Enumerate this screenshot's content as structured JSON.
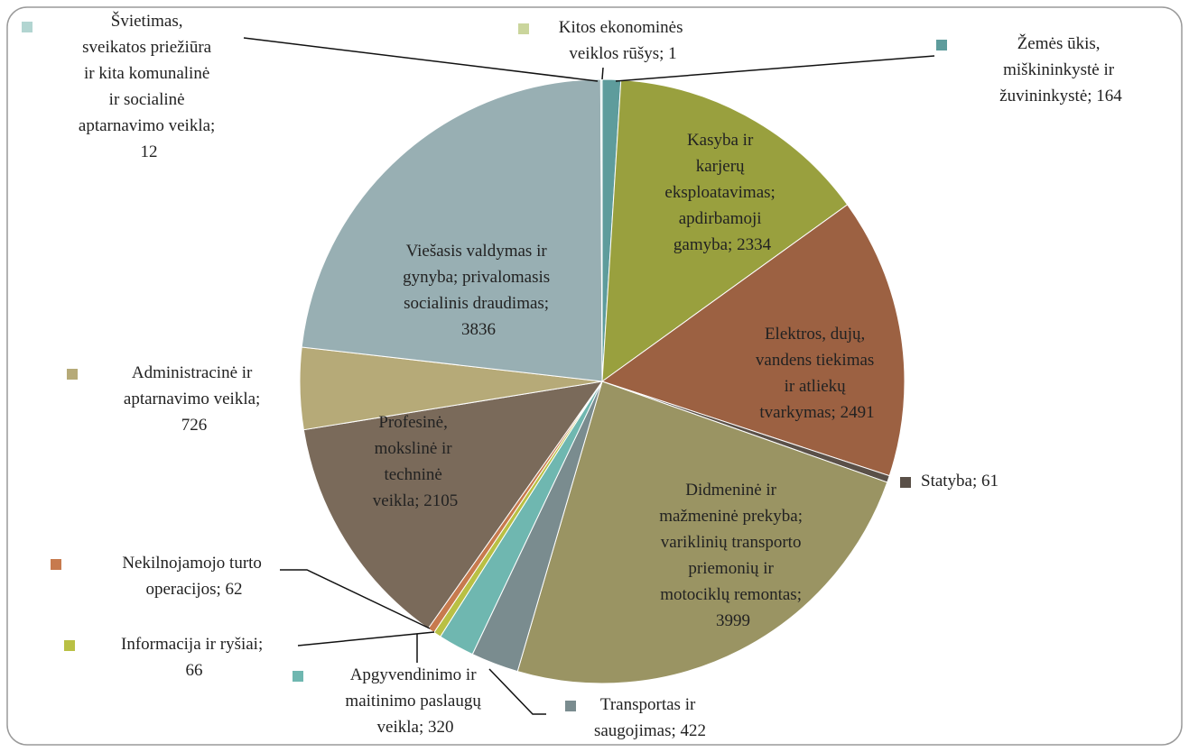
{
  "chart_data": {
    "type": "pie",
    "values": [
      164,
      2334,
      2491,
      61,
      3999,
      422,
      320,
      66,
      62,
      2105,
      726,
      3836,
      12,
      1
    ],
    "value_labels": [
      "Žemės ūkis, miškininkystė ir žuvininkystė; 164",
      "Kasyba ir karjerų eksploatavimas; apdirbamoji gamyba; 2334",
      "Elektros, dujų, vandens tiekimas ir atliekų tvarkymas; 2491",
      "Statyba; 61",
      "Didmeninė ir mažmeninė prekyba; variklinių transporto priemonių ir motociklų remontas; 3999",
      "Transportas ir saugojimas; 422",
      "Apgyvendinimo ir maitinimo paslaugų veikla; 320",
      "Informacija ir ryšiai; 66",
      "Nekilnojamojo turto operacijos; 62",
      "Profesinė, mokslinė ir techninė veikla; 2105",
      "Administracinė ir aptarnavimo veikla; 726",
      "Viešasis valdymas ir gynyba; privalomasis socialinis draudimas; 3836",
      "Švietimas, sveikatos priežiūra ir kita komunalinė ir socialinė aptarnavimo veikla; 12",
      "Kitos ekonominės veiklos rūšys; 1"
    ],
    "colors": [
      "#5e9c9c",
      "#99a03e",
      "#9c6142",
      "#5a5048",
      "#9a9463",
      "#7a8c8f",
      "#6fb7b0",
      "#b9c044",
      "#c77a4e",
      "#7a6a5a",
      "#b6aa78",
      "#98afb3",
      "#b2d5d1",
      "#cad59c"
    ]
  }
}
